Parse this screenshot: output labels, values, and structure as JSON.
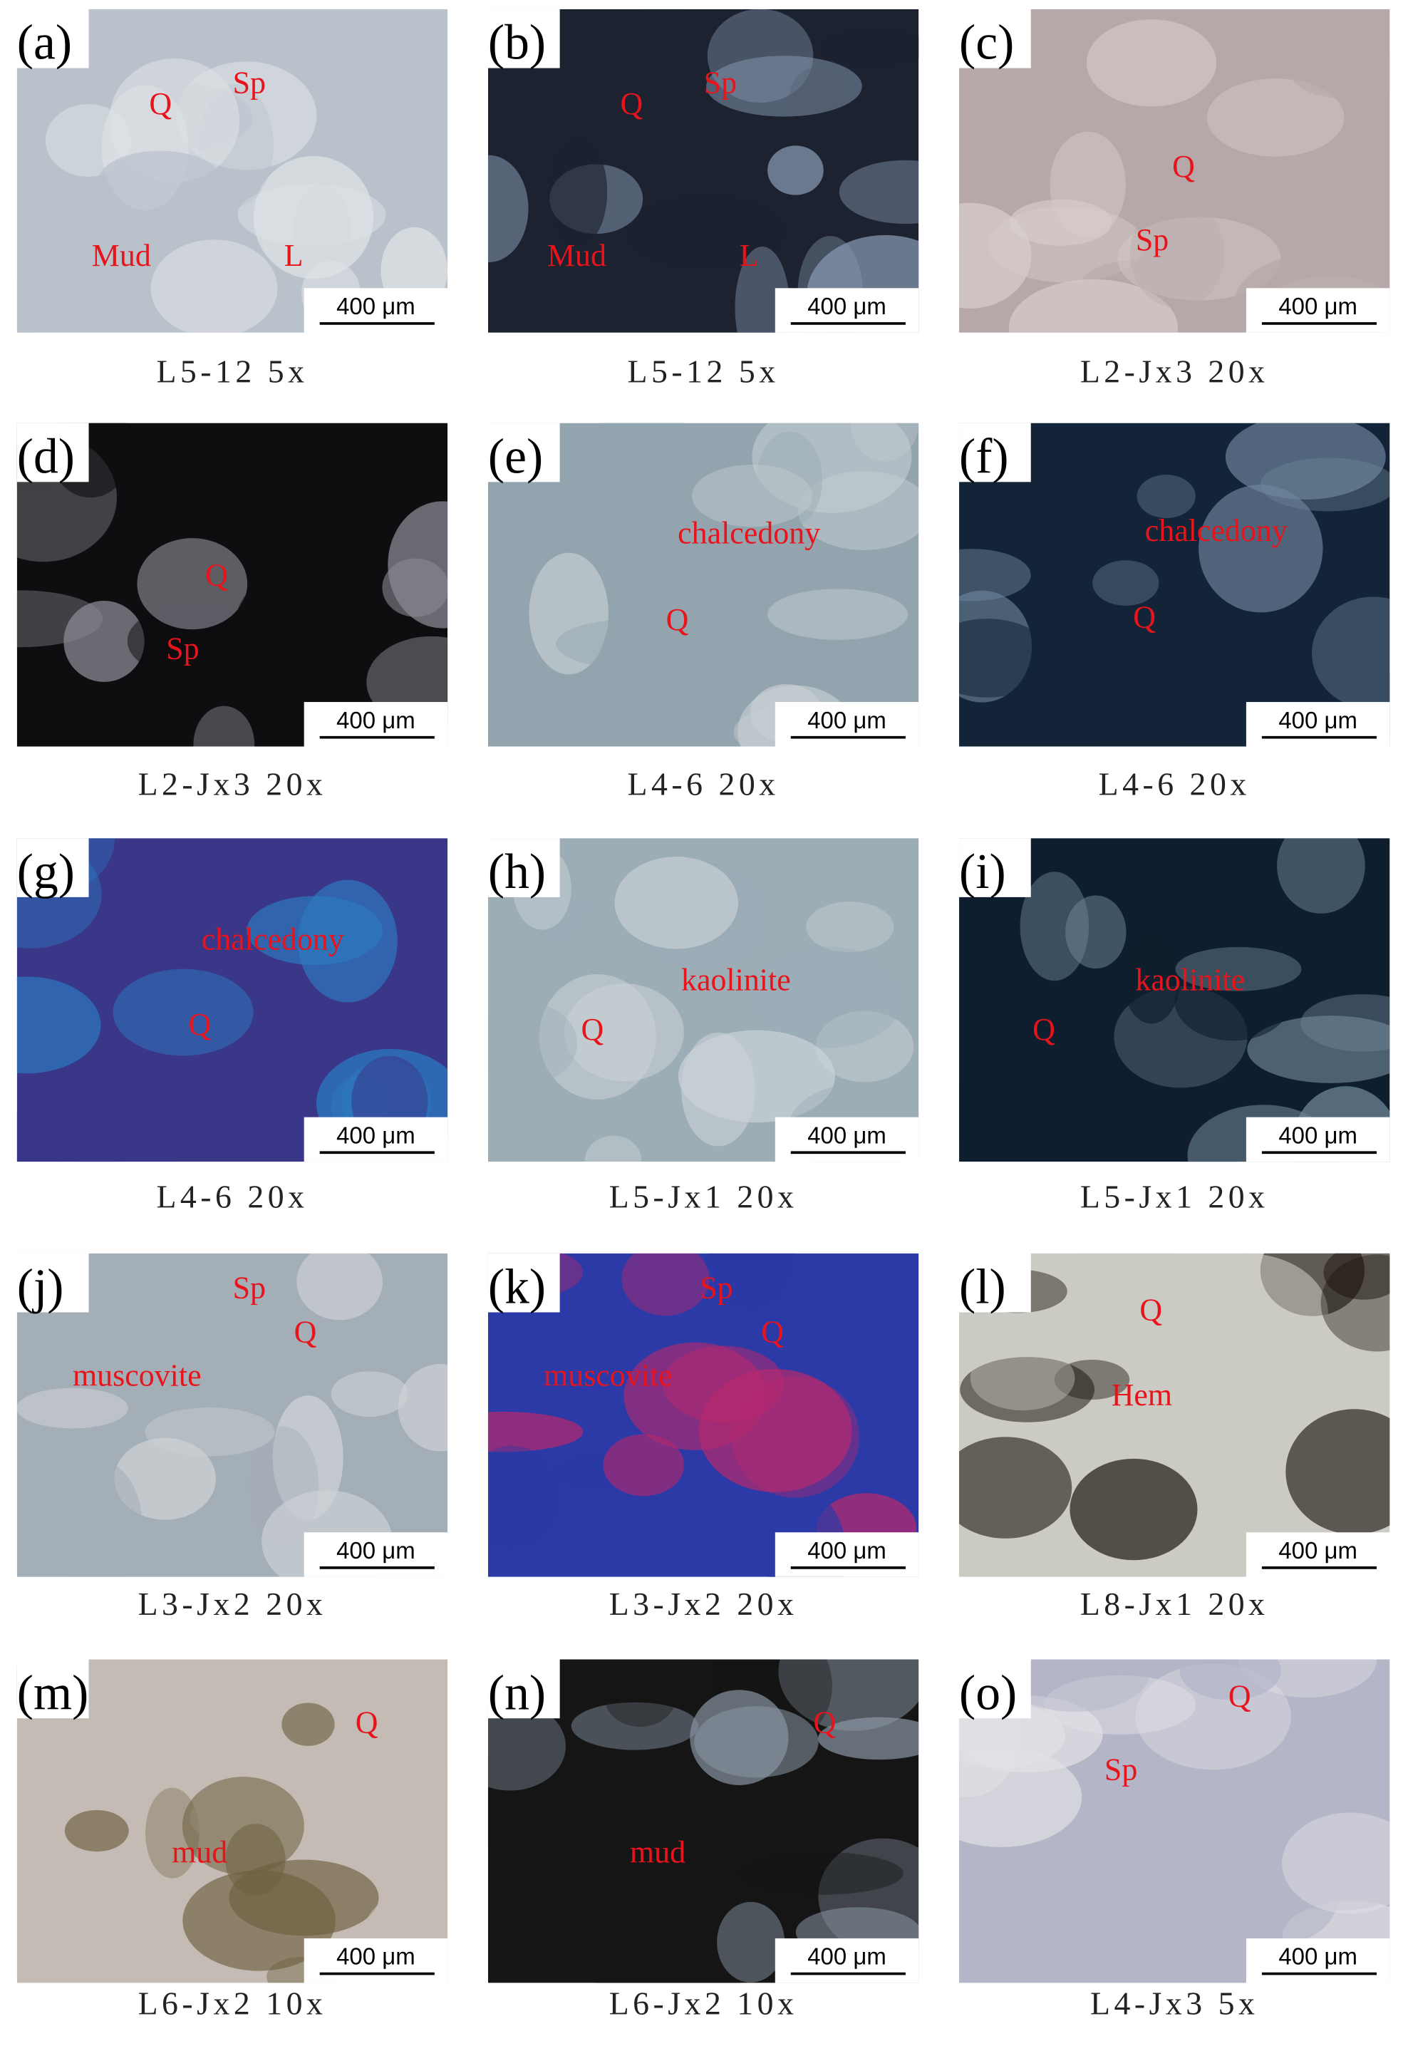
{
  "panels": [
    {
      "label": "(a)",
      "annotations": [
        "Q",
        "Sp",
        "Mud",
        "L"
      ],
      "scale_bar": "400 μm",
      "caption": "L5-12 5x"
    },
    {
      "label": "(b)",
      "annotations": [
        "Q",
        "Sp",
        "Mud",
        "L"
      ],
      "scale_bar": "400 μm",
      "caption": "L5-12 5x"
    },
    {
      "label": "(c)",
      "annotations": [
        "Q",
        "Sp"
      ],
      "scale_bar": "400 μm",
      "caption": "L2-Jx3 20x"
    },
    {
      "label": "(d)",
      "annotations": [
        "Q",
        "Sp"
      ],
      "scale_bar": "400 μm",
      "caption": "L2-Jx3 20x"
    },
    {
      "label": "(e)",
      "annotations": [
        "chalcedony",
        "Q"
      ],
      "scale_bar": "400 μm",
      "caption": "L4-6 20x"
    },
    {
      "label": "(f)",
      "annotations": [
        "chalcedony",
        "Q"
      ],
      "scale_bar": "400 μm",
      "caption": "L4-6 20x"
    },
    {
      "label": "(g)",
      "annotations": [
        "chalcedony",
        "Q"
      ],
      "scale_bar": "400 μm",
      "caption": "L4-6 20x"
    },
    {
      "label": "(h)",
      "annotations": [
        "kaolinite",
        "Q"
      ],
      "scale_bar": "400 μm",
      "caption": "L5-Jx1 20x"
    },
    {
      "label": "(i)",
      "annotations": [
        "kaolinite",
        "Q"
      ],
      "scale_bar": "400 μm",
      "caption": "L5-Jx1 20x"
    },
    {
      "label": "(j)",
      "annotations": [
        "Sp",
        "Q",
        "muscovite"
      ],
      "scale_bar": "400 μm",
      "caption": "L3-Jx2 20x"
    },
    {
      "label": "(k)",
      "annotations": [
        "Sp",
        "Q",
        "muscovite"
      ],
      "scale_bar": "400 μm",
      "caption": "L3-Jx2 20x"
    },
    {
      "label": "(l)",
      "annotations": [
        "Q",
        "Hem"
      ],
      "scale_bar": "400 μm",
      "caption": "L8-Jx1 20x"
    },
    {
      "label": "(m)",
      "annotations": [
        "Q",
        "mud"
      ],
      "scale_bar": "400 μm",
      "caption": "L6-Jx2 10x"
    },
    {
      "label": "(n)",
      "annotations": [
        "Q",
        "mud"
      ],
      "scale_bar": "400 μm",
      "caption": "L6-Jx2 10x"
    },
    {
      "label": "(o)",
      "annotations": [
        "Q",
        "Sp"
      ],
      "scale_bar": "400 μm",
      "caption": "L4-Jx3 5x"
    }
  ]
}
